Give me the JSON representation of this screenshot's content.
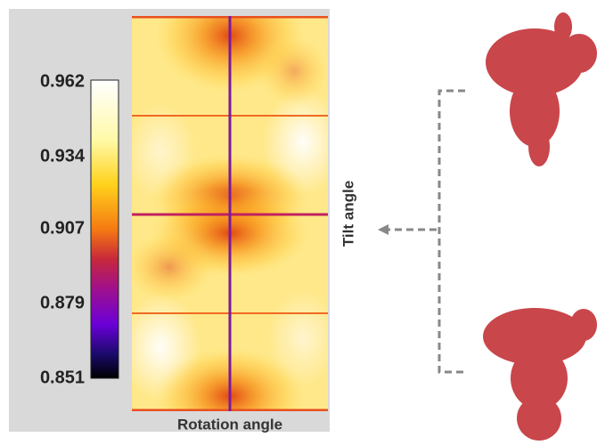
{
  "colorbar": {
    "ticks": [
      0.962,
      0.934,
      0.907,
      0.879,
      0.851
    ]
  },
  "x_label": "Rotation angle",
  "y_label": "Tilt angle"
}
